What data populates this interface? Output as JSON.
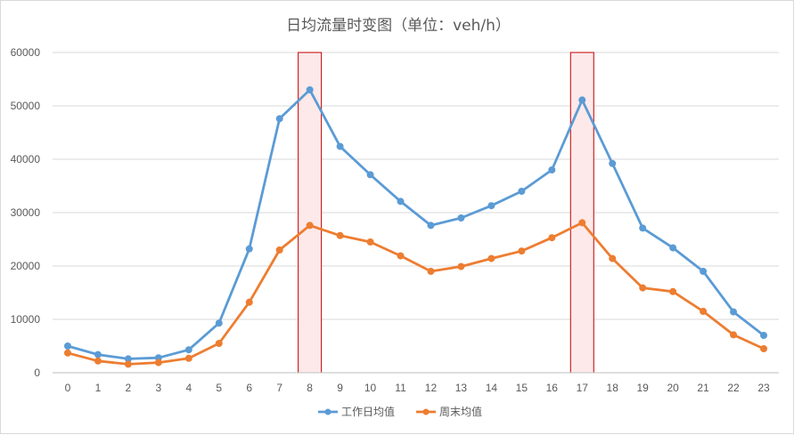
{
  "chart_data": {
    "type": "line",
    "title": "日均流量时变图（单位：veh/h）",
    "xlabel": "",
    "ylabel": "",
    "categories": [
      "0",
      "1",
      "2",
      "3",
      "4",
      "5",
      "6",
      "7",
      "8",
      "9",
      "10",
      "11",
      "12",
      "13",
      "14",
      "15",
      "16",
      "17",
      "18",
      "19",
      "20",
      "21",
      "22",
      "23"
    ],
    "ylim": [
      0,
      60000
    ],
    "yticks": [
      0,
      10000,
      20000,
      30000,
      40000,
      50000,
      60000
    ],
    "grid": true,
    "legend_position": "bottom",
    "series": [
      {
        "name": "工作日均值",
        "color": "#5b9bd5",
        "values": [
          5000,
          3400,
          2600,
          2800,
          4300,
          9300,
          23200,
          47600,
          53000,
          42400,
          37100,
          32100,
          27600,
          29000,
          31300,
          34000,
          38000,
          51100,
          39200,
          27100,
          23400,
          19000,
          11400,
          7000
        ]
      },
      {
        "name": "周末均值",
        "color": "#ed7d31",
        "values": [
          3700,
          2200,
          1600,
          1900,
          2700,
          5500,
          13200,
          23000,
          27600,
          25700,
          24500,
          21900,
          19000,
          19900,
          21400,
          22800,
          25300,
          28100,
          21400,
          15900,
          15200,
          11500,
          7100,
          4500
        ]
      }
    ],
    "highlights": [
      {
        "category": "8",
        "stroke": "#c00000",
        "fill": "#fde9e9"
      },
      {
        "category": "17",
        "stroke": "#c00000",
        "fill": "#fde9e9"
      }
    ]
  }
}
